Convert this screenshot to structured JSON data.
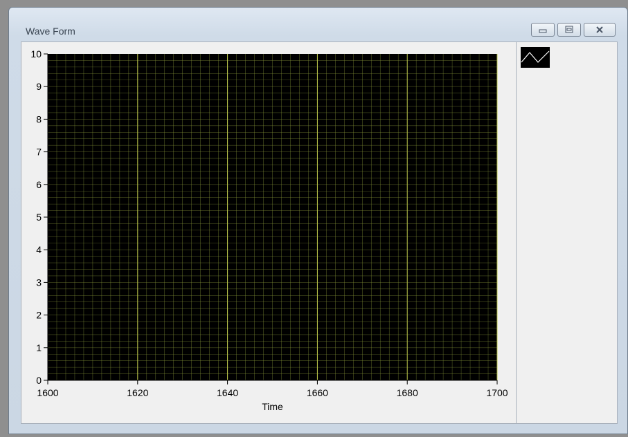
{
  "window": {
    "title": "Wave Form",
    "controls": [
      "minimize",
      "maximize",
      "close"
    ]
  },
  "legend": {
    "icon": "line-wave-icon"
  },
  "chart_data": {
    "type": "line",
    "title": "",
    "xlabel": "Time",
    "ylabel": "",
    "xlim": [
      1600,
      1700
    ],
    "ylim": [
      0,
      10
    ],
    "x_ticks": [
      1600,
      1620,
      1640,
      1660,
      1680,
      1700
    ],
    "y_ticks": [
      0,
      1,
      2,
      3,
      4,
      5,
      6,
      7,
      8,
      9,
      10
    ],
    "grid": true,
    "background_color": "#000000",
    "grid_color": "#8a9a3a",
    "series": []
  }
}
